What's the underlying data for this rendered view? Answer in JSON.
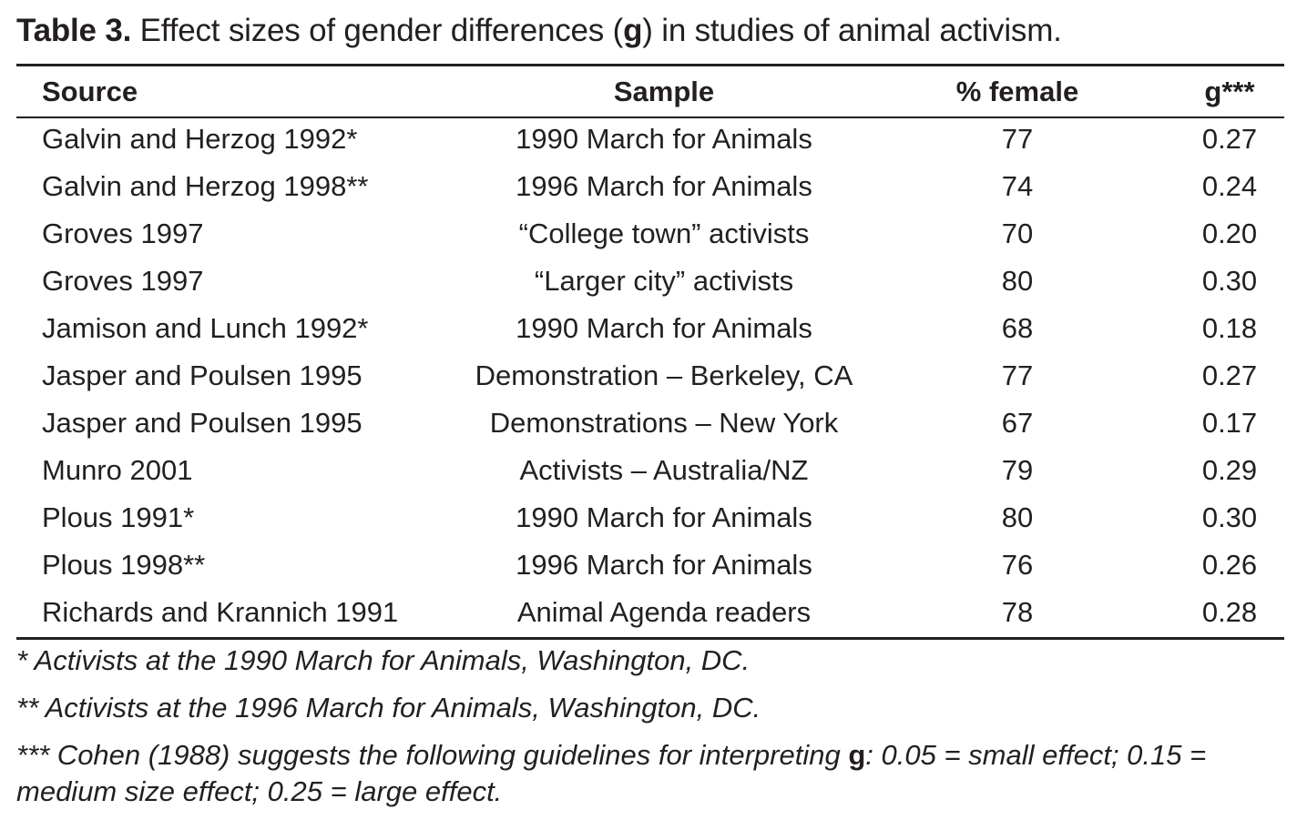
{
  "caption": {
    "label": "Table 3.",
    "text_before": " Effect sizes of gender differences (",
    "symbol": "g",
    "text_after": ") in studies of animal activism."
  },
  "columns": {
    "source": "Source",
    "sample": "Sample",
    "female": "% female",
    "g": "g***"
  },
  "rows": [
    {
      "source": "Galvin and Herzog 1992*",
      "sample": "1990 March for Animals",
      "female": "77",
      "g": "0.27"
    },
    {
      "source": "Galvin and Herzog 1998**",
      "sample": "1996 March for Animals",
      "female": "74",
      "g": "0.24"
    },
    {
      "source": "Groves 1997",
      "sample": "“College town” activists",
      "female": "70",
      "g": "0.20"
    },
    {
      "source": "Groves 1997",
      "sample": "“Larger city” activists",
      "female": "80",
      "g": "0.30"
    },
    {
      "source": "Jamison and Lunch 1992*",
      "sample": "1990 March for Animals",
      "female": "68",
      "g": "0.18"
    },
    {
      "source": "Jasper and  Poulsen 1995",
      "sample": "Demonstration – Berkeley, CA",
      "female": "77",
      "g": "0.27"
    },
    {
      "source": "Jasper and  Poulsen 1995",
      "sample": "Demonstrations –  New York",
      "female": "67",
      "g": "0.17"
    },
    {
      "source": "Munro 2001",
      "sample": "Activists – Australia/NZ",
      "female": "79",
      "g": "0.29"
    },
    {
      "source": "Plous 1991*",
      "sample": "1990 March for Animals",
      "female": "80",
      "g": "0.30"
    },
    {
      "source": "Plous 1998**",
      "sample": "1996 March for Animals",
      "female": "76",
      "g": "0.26"
    },
    {
      "source": "Richards and Krannich 1991",
      "sample": "Animal Agenda readers",
      "female": "78",
      "g": "0.28"
    }
  ],
  "notes": {
    "n1": "* Activists at the 1990 March for Animals, Washington, DC.",
    "n2": "** Activists at the 1996 March for Animals, Washington, DC.",
    "n3_before": "*** Cohen (1988) suggests the following guidelines for interpreting ",
    "n3_symbol": "g",
    "n3_after": ": 0.05 = small effect; 0.15 = medium size effect; 0.25 = large effect."
  }
}
